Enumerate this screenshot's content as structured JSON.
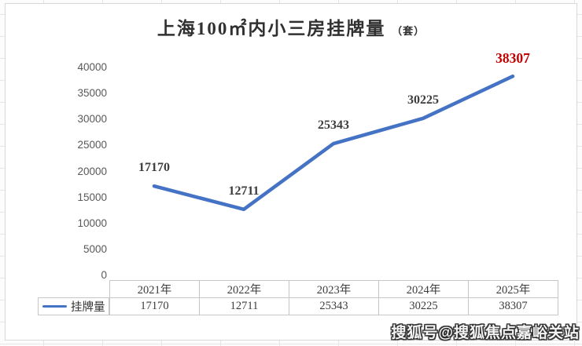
{
  "chart_data": {
    "type": "line",
    "title": "上海100㎡内小三房挂牌量",
    "title_suffix": "（套）",
    "categories": [
      "2021年",
      "2022年",
      "2023年",
      "2024年",
      "2025年"
    ],
    "series": [
      {
        "name": "挂牌量",
        "values": [
          17170,
          12711,
          25343,
          30225,
          38307
        ]
      }
    ],
    "ylim": [
      0,
      40000
    ],
    "ytick_step": 5000,
    "yticks": [
      "0",
      "5000",
      "10000",
      "15000",
      "20000",
      "25000",
      "30000",
      "35000",
      "40000"
    ],
    "grid": false,
    "legend_position": "table-left",
    "colors": {
      "line": "#4472c4",
      "data_label": "#3d3d3d",
      "last_label_highlight": "#c00000",
      "axis_label": "#595959",
      "table_border": "#c6c6c6"
    }
  },
  "watermark": "搜狐号@搜狐焦点嘉峪关站"
}
